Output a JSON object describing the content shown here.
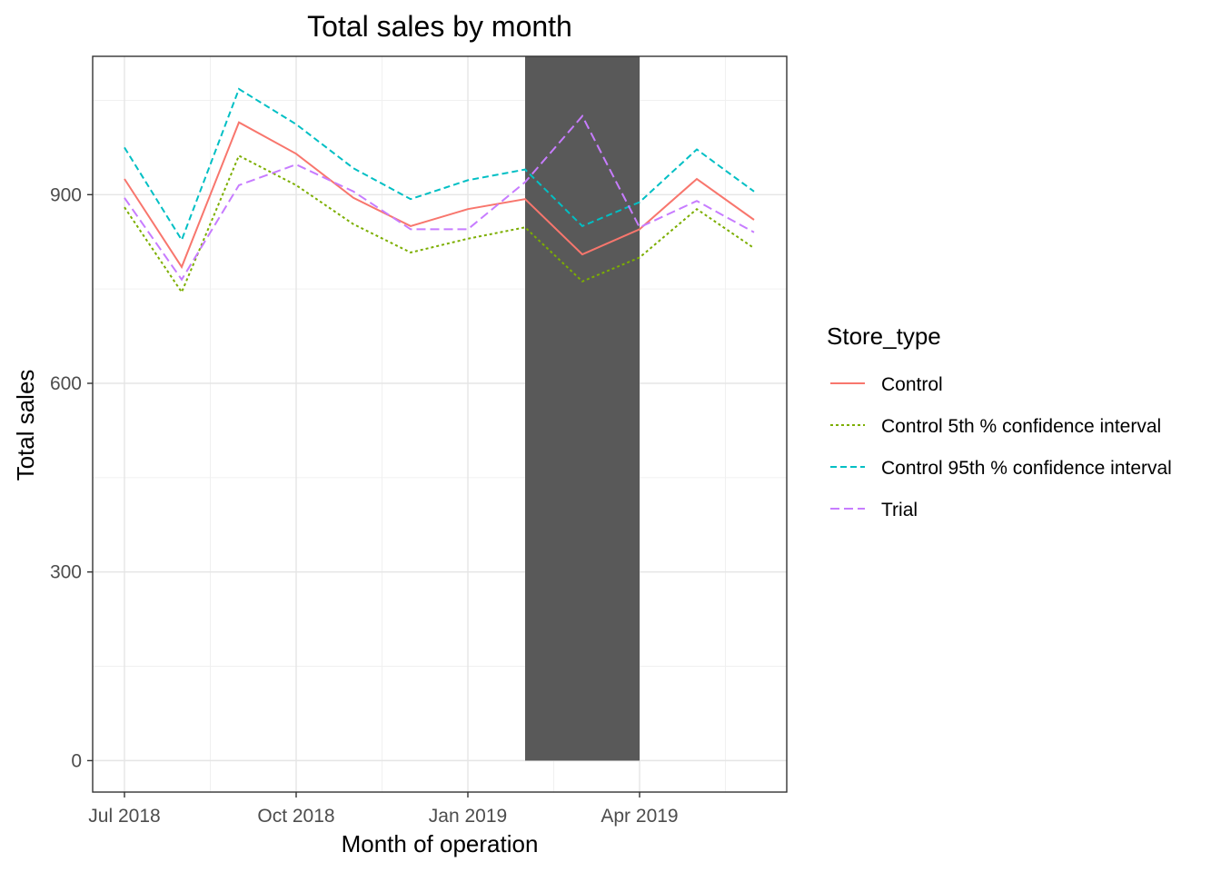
{
  "chart_data": {
    "type": "line",
    "title": "Total sales by month",
    "xlabel": "Month of operation",
    "ylabel": "Total sales",
    "x": [
      "2018-07",
      "2018-08",
      "2018-09",
      "2018-10",
      "2018-11",
      "2018-12",
      "2019-01",
      "2019-02",
      "2019-03",
      "2019-04",
      "2019-05",
      "2019-06"
    ],
    "x_ticks": [
      {
        "month": "2018-07",
        "label": "Jul 2018"
      },
      {
        "month": "2018-10",
        "label": "Oct 2018"
      },
      {
        "month": "2019-01",
        "label": "Jan 2019"
      },
      {
        "month": "2019-04",
        "label": "Apr 2019"
      }
    ],
    "ylim": [
      -50,
      1120
    ],
    "y_ticks": [
      0,
      300,
      600,
      900
    ],
    "grid": true,
    "highlight_band": {
      "from": "2019-02",
      "to": "2019-04",
      "ymin": 0,
      "ymax": 1120,
      "color": "#595959"
    },
    "legend": {
      "title": "Store_type",
      "position": "right"
    },
    "series": [
      {
        "name": "Control",
        "color": "#F8766D",
        "dash": "solid",
        "values": [
          925,
          785,
          1015,
          965,
          895,
          850,
          877,
          893,
          805,
          845,
          925,
          860
        ]
      },
      {
        "name": "Control 5th % confidence interval",
        "color": "#7CAE00",
        "dash": "dotted",
        "values": [
          880,
          745,
          962,
          915,
          853,
          808,
          830,
          848,
          762,
          800,
          877,
          815
        ]
      },
      {
        "name": "Control 95th % confidence interval",
        "color": "#00BFC4",
        "dash": "dashed",
        "values": [
          975,
          828,
          1068,
          1012,
          942,
          893,
          923,
          940,
          850,
          888,
          972,
          905
        ]
      },
      {
        "name": "Trial",
        "color": "#C77CFF",
        "dash": "longdash",
        "values": [
          895,
          765,
          915,
          948,
          905,
          845,
          845,
          920,
          1025,
          848,
          890,
          840
        ]
      }
    ]
  }
}
